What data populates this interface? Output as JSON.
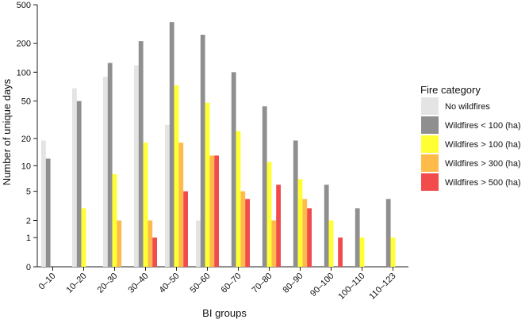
{
  "chart_data": {
    "type": "bar",
    "xlabel": "BI groups",
    "ylabel": "Number of unique days",
    "yscale": "log1p",
    "ylim": [
      0,
      500
    ],
    "yticks": [
      0,
      1,
      2,
      5,
      10,
      20,
      50,
      100,
      200,
      500
    ],
    "categories": [
      "0–10",
      "10–20",
      "20–30",
      "30–40",
      "40–50",
      "50–60",
      "60–70",
      "70–80",
      "80–90",
      "90–100",
      "100–110",
      "110–123"
    ],
    "legend_title": "Fire category",
    "legend_position": "right",
    "series": [
      {
        "name": "No wildfires",
        "color": "#e4e4e4",
        "values": [
          19,
          68,
          90,
          118,
          28,
          2,
          null,
          null,
          null,
          null,
          null,
          null
        ]
      },
      {
        "name": "Wildfires < 100 (ha)",
        "color": "#8f8f8f",
        "values": [
          12,
          50,
          125,
          210,
          330,
          245,
          100,
          44,
          19,
          6,
          3,
          4
        ]
      },
      {
        "name": "Wildfires > 100 (ha)",
        "color": "#ffff33",
        "values": [
          null,
          3,
          8,
          18,
          73,
          48,
          24,
          11,
          7,
          2,
          1,
          1
        ]
      },
      {
        "name": "Wildfires > 300 (ha)",
        "color": "#ffbb4a",
        "values": [
          null,
          null,
          2,
          2,
          18,
          13,
          5,
          2,
          4,
          null,
          null,
          null
        ]
      },
      {
        "name": "Wildfires > 500 (ha)",
        "color": "#f24b4b",
        "values": [
          null,
          null,
          null,
          1,
          5,
          13,
          4,
          6,
          3,
          1,
          null,
          null
        ]
      }
    ]
  }
}
